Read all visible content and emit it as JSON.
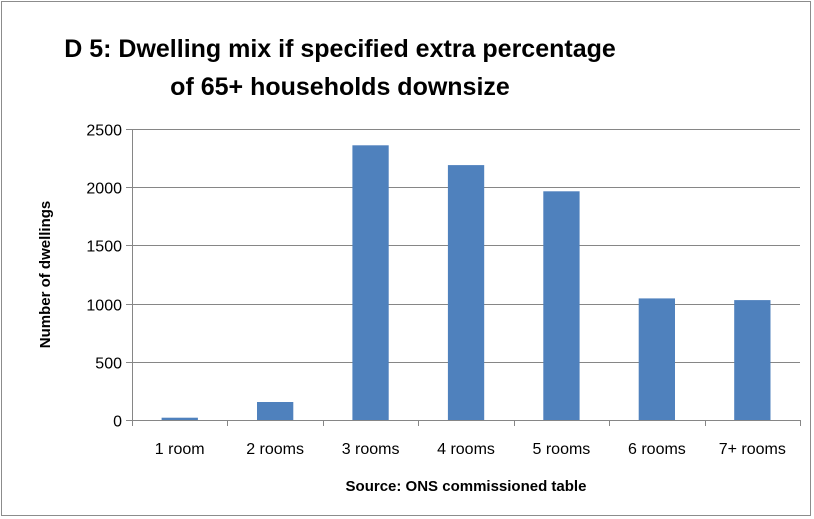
{
  "chart_data": {
    "type": "bar",
    "title_lines": [
      "D 5: Dwelling mix if specified extra percentage",
      "of 65+ households downsize"
    ],
    "categories": [
      "1 room",
      "2 rooms",
      "3 rooms",
      "4 rooms",
      "5 rooms",
      "6 rooms",
      "7+ rooms"
    ],
    "values": [
      20,
      155,
      2360,
      2190,
      1965,
      1045,
      1030
    ],
    "xlabel": "Source: ONS commissioned table",
    "ylabel": "Number of dwellings",
    "ylim": [
      0,
      2500
    ],
    "yticks": [
      0,
      500,
      1000,
      1500,
      2000,
      2500
    ],
    "bar_color": "#4f81bd",
    "gridlines": true,
    "legend": "none"
  }
}
